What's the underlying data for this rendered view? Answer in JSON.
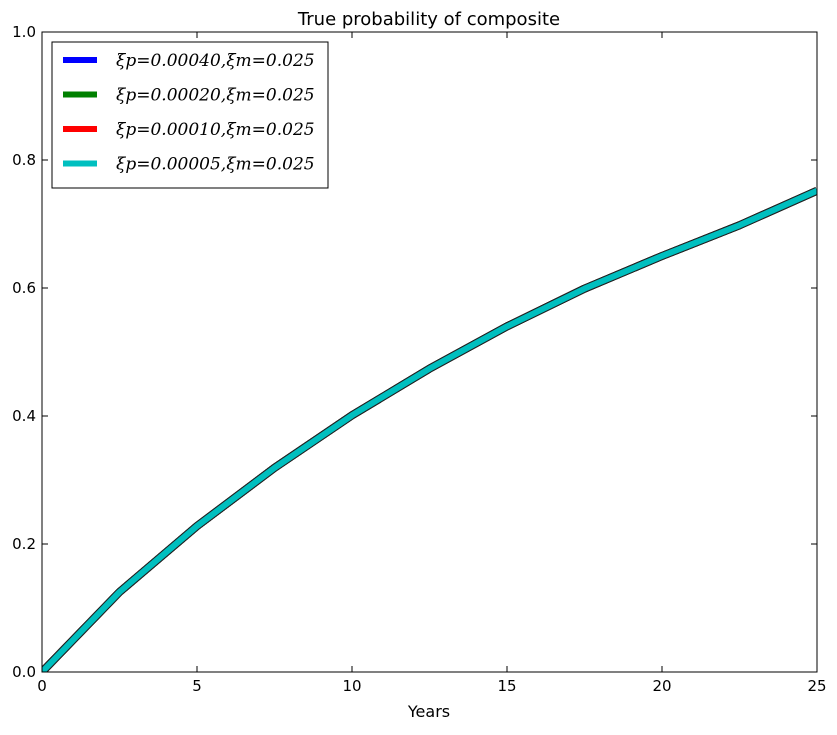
{
  "chart_data": {
    "type": "line",
    "title": "True probability of composite",
    "xlabel": "Years",
    "ylabel": "",
    "xlim": [
      0,
      25
    ],
    "ylim": [
      0.0,
      1.0
    ],
    "xticks": [
      0,
      5,
      10,
      15,
      20,
      25
    ],
    "xtick_labels": [
      "0",
      "5",
      "10",
      "15",
      "20",
      "25"
    ],
    "yticks": [
      0.0,
      0.2,
      0.4,
      0.6,
      0.8,
      1.0
    ],
    "ytick_labels": [
      "0.0",
      "0.2",
      "0.4",
      "0.6",
      "0.8",
      "1.0"
    ],
    "grid": false,
    "legend_position": "top-left",
    "x": [
      0,
      2.5,
      5,
      7.5,
      10,
      12.5,
      15,
      17.5,
      20,
      22.5,
      25
    ],
    "series": [
      {
        "name": "ξp=0.00040,ξm=0.025",
        "color": "#0000ff",
        "values": [
          0.0,
          0.125,
          0.228,
          0.319,
          0.401,
          0.474,
          0.54,
          0.599,
          0.65,
          0.698,
          0.752
        ]
      },
      {
        "name": "ξp=0.00020,ξm=0.025",
        "color": "#008000",
        "values": [
          0.0,
          0.125,
          0.228,
          0.319,
          0.401,
          0.474,
          0.54,
          0.599,
          0.65,
          0.698,
          0.752
        ]
      },
      {
        "name": "ξp=0.00010,ξm=0.025",
        "color": "#ff0000",
        "values": [
          0.0,
          0.125,
          0.228,
          0.319,
          0.401,
          0.474,
          0.54,
          0.599,
          0.65,
          0.698,
          0.752
        ]
      },
      {
        "name": "ξp=0.00005,ξm=0.025",
        "color": "#00bfbf",
        "values": [
          0.0,
          0.125,
          0.228,
          0.319,
          0.401,
          0.474,
          0.54,
          0.599,
          0.65,
          0.698,
          0.752
        ]
      }
    ]
  }
}
